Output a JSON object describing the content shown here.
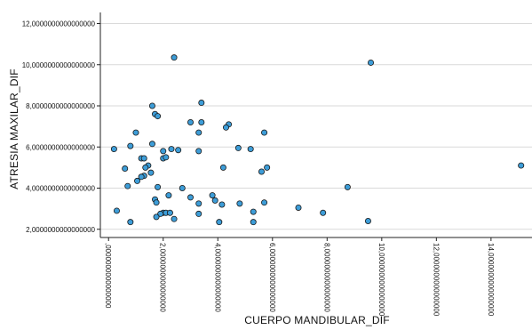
{
  "chart_data": {
    "type": "scatter",
    "xlabel": "CUERPO MANDIBULAR_DIF",
    "ylabel": "ATRESIA MAXILAR_DIF",
    "xlim": [
      -0.3,
      15.5
    ],
    "ylim": [
      1.6,
      12.8
    ],
    "x_ticks": [
      0,
      2,
      4,
      6,
      8,
      10,
      12,
      14
    ],
    "x_tick_labels": [
      ",0000000000000000",
      "2,0000000000000000",
      "4,0000000000000000",
      "6,0000000000000000",
      "8,0000000000000000",
      "10,0000000000000000",
      "12,0000000000000000",
      "14,0000000000000000"
    ],
    "y_ticks": [
      2,
      4,
      6,
      8,
      10,
      12
    ],
    "y_tick_labels": [
      "2,0000000000000000",
      "4,0000000000000000",
      "6,0000000000000000",
      "8,0000000000000000",
      "10,0000000000000000",
      "12,0000000000000000"
    ],
    "grid": "horizontal",
    "legend": "none",
    "marker_color": "#3d9dd8",
    "marker_edge_color": "#1a1a1a",
    "gridline_color": "#d9d9d9",
    "points": [
      [
        2.4,
        10.35
      ],
      [
        9.6,
        10.1
      ],
      [
        3.4,
        8.15
      ],
      [
        1.6,
        8.0
      ],
      [
        1.7,
        7.6
      ],
      [
        1.8,
        7.5
      ],
      [
        3.0,
        7.2
      ],
      [
        3.4,
        7.2
      ],
      [
        4.4,
        7.1
      ],
      [
        4.3,
        6.95
      ],
      [
        1.0,
        6.7
      ],
      [
        3.3,
        6.7
      ],
      [
        5.7,
        6.7
      ],
      [
        1.6,
        6.15
      ],
      [
        0.8,
        6.05
      ],
      [
        0.2,
        5.9
      ],
      [
        2.3,
        5.9
      ],
      [
        2.55,
        5.85
      ],
      [
        4.75,
        5.95
      ],
      [
        5.2,
        5.9
      ],
      [
        3.3,
        5.8
      ],
      [
        2.0,
        5.8
      ],
      [
        2.0,
        5.45
      ],
      [
        2.1,
        5.5
      ],
      [
        1.2,
        5.45
      ],
      [
        1.3,
        5.45
      ],
      [
        1.45,
        5.1
      ],
      [
        1.35,
        5.0
      ],
      [
        0.6,
        4.95
      ],
      [
        4.2,
        5.0
      ],
      [
        5.8,
        5.0
      ],
      [
        5.6,
        4.8
      ],
      [
        1.55,
        4.75
      ],
      [
        1.3,
        4.6
      ],
      [
        1.2,
        4.55
      ],
      [
        1.05,
        4.35
      ],
      [
        0.7,
        4.1
      ],
      [
        1.8,
        4.05
      ],
      [
        2.7,
        4.0
      ],
      [
        8.75,
        4.05
      ],
      [
        15.1,
        5.1
      ],
      [
        1.7,
        3.45
      ],
      [
        2.2,
        3.65
      ],
      [
        3.0,
        3.55
      ],
      [
        3.8,
        3.65
      ],
      [
        3.9,
        3.4
      ],
      [
        1.75,
        3.3
      ],
      [
        3.3,
        3.25
      ],
      [
        4.15,
        3.2
      ],
      [
        4.8,
        3.25
      ],
      [
        5.7,
        3.3
      ],
      [
        6.95,
        3.05
      ],
      [
        0.3,
        2.9
      ],
      [
        2.0,
        2.8
      ],
      [
        2.1,
        2.8
      ],
      [
        2.25,
        2.8
      ],
      [
        1.9,
        2.75
      ],
      [
        3.3,
        2.75
      ],
      [
        5.3,
        2.85
      ],
      [
        7.85,
        2.8
      ],
      [
        1.75,
        2.6
      ],
      [
        2.4,
        2.5
      ],
      [
        0.8,
        2.35
      ],
      [
        4.05,
        2.35
      ],
      [
        5.3,
        2.35
      ],
      [
        9.5,
        2.4
      ]
    ]
  }
}
